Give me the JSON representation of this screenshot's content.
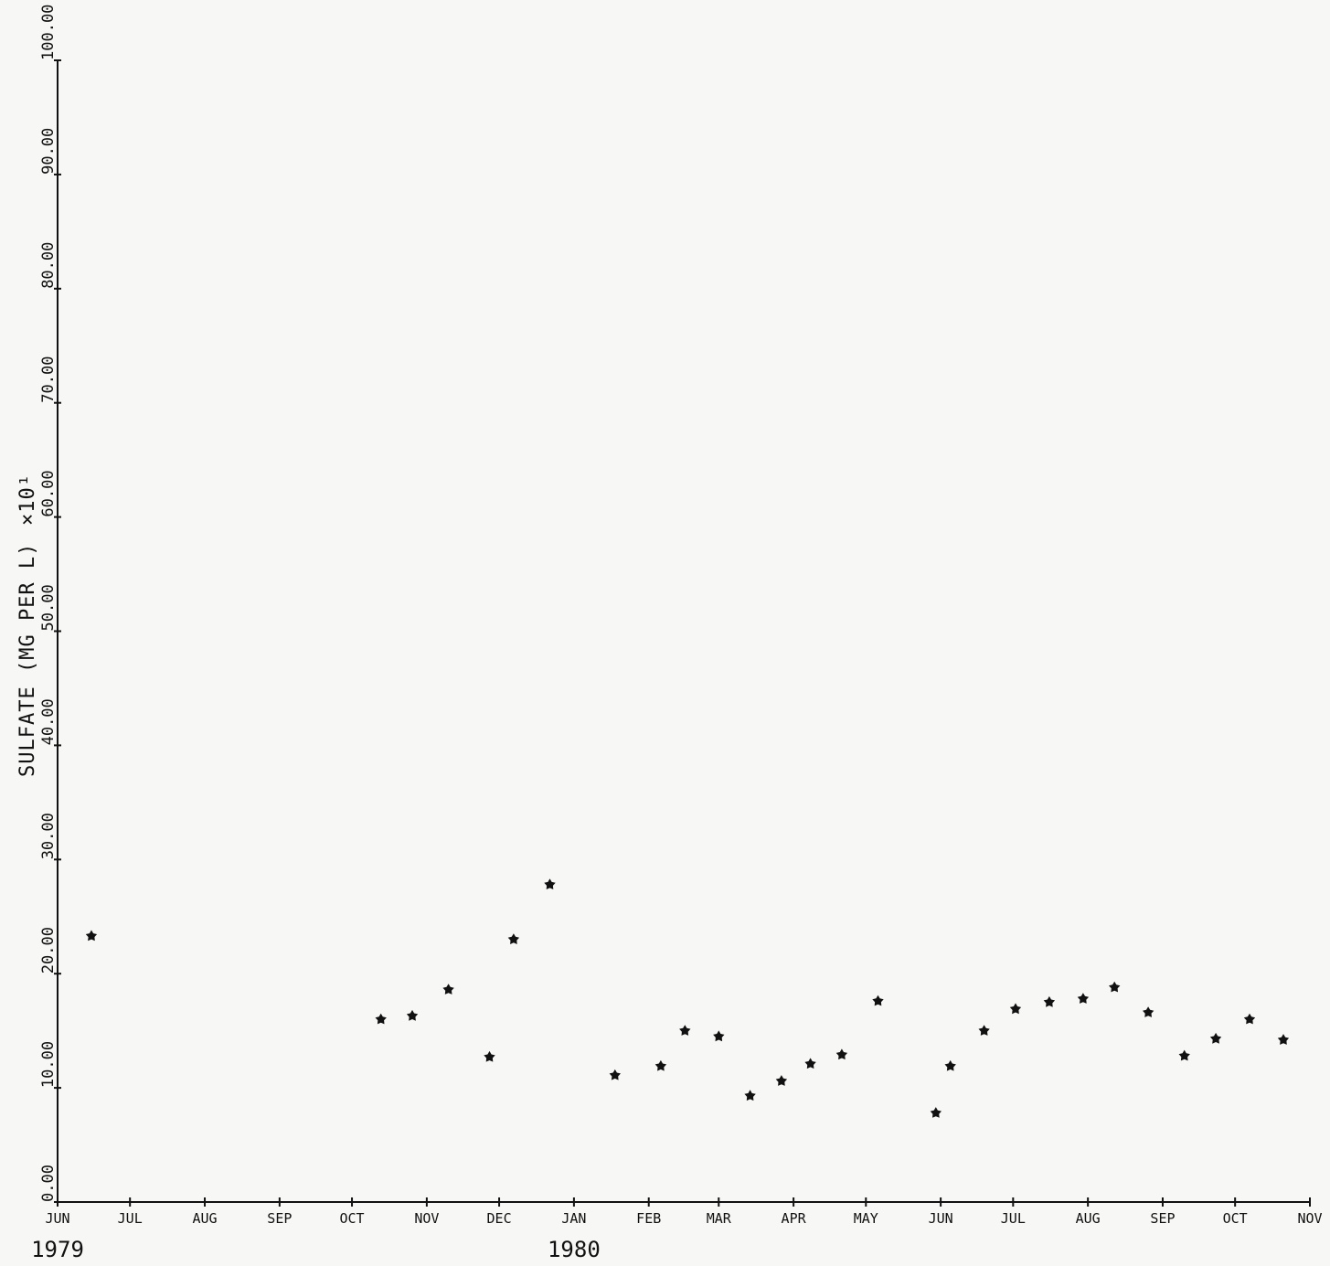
{
  "chart_data": {
    "type": "scatter",
    "ylabel": "SULFATE (MG PER L)",
    "y_multiplier_label": "×10¹",
    "ylim": [
      0,
      100
    ],
    "y_ticks": [
      "0.00",
      "10.00",
      "20.00",
      "30.00",
      "40.00",
      "50.00",
      "60.00",
      "70.00",
      "80.00",
      "90.00",
      "100.00"
    ],
    "y_tick_values": [
      0,
      10,
      20,
      30,
      40,
      50,
      60,
      70,
      80,
      90,
      100
    ],
    "xlim": [
      "1979-06-01",
      "1980-11-01"
    ],
    "x_ticks": [
      {
        "date": "1979-06-01",
        "label": "JUN"
      },
      {
        "date": "1979-07-01",
        "label": "JUL"
      },
      {
        "date": "1979-08-01",
        "label": "AUG"
      },
      {
        "date": "1979-09-01",
        "label": "SEP"
      },
      {
        "date": "1979-10-01",
        "label": "OCT"
      },
      {
        "date": "1979-11-01",
        "label": "NOV"
      },
      {
        "date": "1979-12-01",
        "label": "DEC"
      },
      {
        "date": "1980-01-01",
        "label": "JAN"
      },
      {
        "date": "1980-02-01",
        "label": "FEB"
      },
      {
        "date": "1980-03-01",
        "label": "MAR"
      },
      {
        "date": "1980-04-01",
        "label": "APR"
      },
      {
        "date": "1980-05-01",
        "label": "MAY"
      },
      {
        "date": "1980-06-01",
        "label": "JUN"
      },
      {
        "date": "1980-07-01",
        "label": "JUL"
      },
      {
        "date": "1980-08-01",
        "label": "AUG"
      },
      {
        "date": "1980-09-01",
        "label": "SEP"
      },
      {
        "date": "1980-10-01",
        "label": "OCT"
      },
      {
        "date": "1980-11-01",
        "label": "NOV"
      }
    ],
    "year_labels": [
      {
        "date": "1979-06-01",
        "label": "1979"
      },
      {
        "date": "1980-01-01",
        "label": "1980"
      }
    ],
    "marker_color": "#111111",
    "points": [
      {
        "x": "1979-06-15",
        "y": 23.3
      },
      {
        "x": "1979-10-13",
        "y": 16.0
      },
      {
        "x": "1979-10-26",
        "y": 16.3
      },
      {
        "x": "1979-11-10",
        "y": 18.6
      },
      {
        "x": "1979-11-27",
        "y": 12.7
      },
      {
        "x": "1979-12-07",
        "y": 23.0
      },
      {
        "x": "1979-12-22",
        "y": 27.8
      },
      {
        "x": "1980-01-18",
        "y": 11.1
      },
      {
        "x": "1980-02-06",
        "y": 11.9
      },
      {
        "x": "1980-02-16",
        "y": 15.0
      },
      {
        "x": "1980-03-01",
        "y": 14.5
      },
      {
        "x": "1980-03-14",
        "y": 9.3
      },
      {
        "x": "1980-03-27",
        "y": 10.6
      },
      {
        "x": "1980-04-08",
        "y": 12.1
      },
      {
        "x": "1980-04-21",
        "y": 12.9
      },
      {
        "x": "1980-05-06",
        "y": 17.6
      },
      {
        "x": "1980-05-30",
        "y": 7.8
      },
      {
        "x": "1980-06-05",
        "y": 11.9
      },
      {
        "x": "1980-06-19",
        "y": 15.0
      },
      {
        "x": "1980-07-02",
        "y": 16.9
      },
      {
        "x": "1980-07-16",
        "y": 17.5
      },
      {
        "x": "1980-07-30",
        "y": 17.8
      },
      {
        "x": "1980-08-12",
        "y": 18.8
      },
      {
        "x": "1980-08-26",
        "y": 16.6
      },
      {
        "x": "1980-09-10",
        "y": 12.8
      },
      {
        "x": "1980-09-23",
        "y": 14.3
      },
      {
        "x": "1980-10-07",
        "y": 16.0
      },
      {
        "x": "1980-10-21",
        "y": 14.2
      }
    ]
  }
}
